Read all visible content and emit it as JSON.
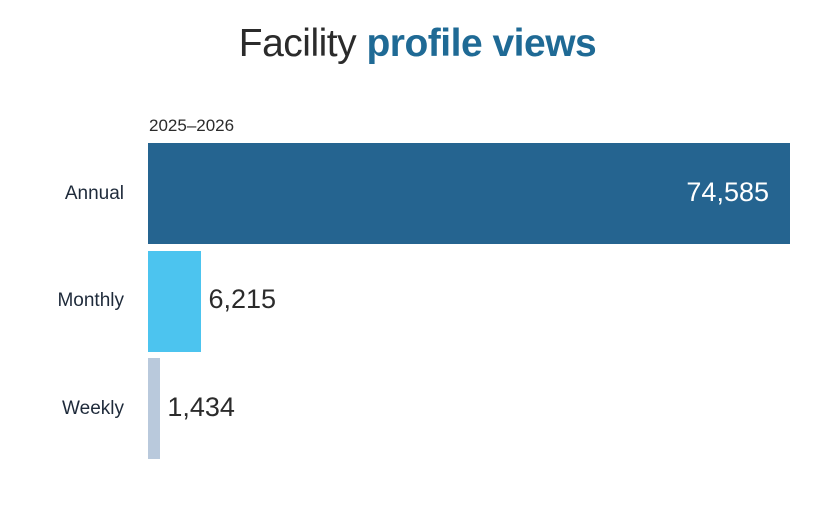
{
  "title_part1": "Facility",
  "title_part2": "profile views",
  "period_label": "2025–2026",
  "chart_data": {
    "type": "bar",
    "orientation": "horizontal",
    "title": "Facility profile views",
    "subtitle": "2025–2026",
    "categories": [
      "Annual",
      "Monthly",
      "Weekly"
    ],
    "values": [
      74585,
      6215,
      1434
    ],
    "value_labels": [
      "74,585",
      "6,215",
      "1,434"
    ],
    "colors": [
      "#256490",
      "#4cc4ef",
      "#b9c9dc"
    ],
    "xlim": [
      0,
      74585
    ],
    "grid": false,
    "legend": "none"
  }
}
